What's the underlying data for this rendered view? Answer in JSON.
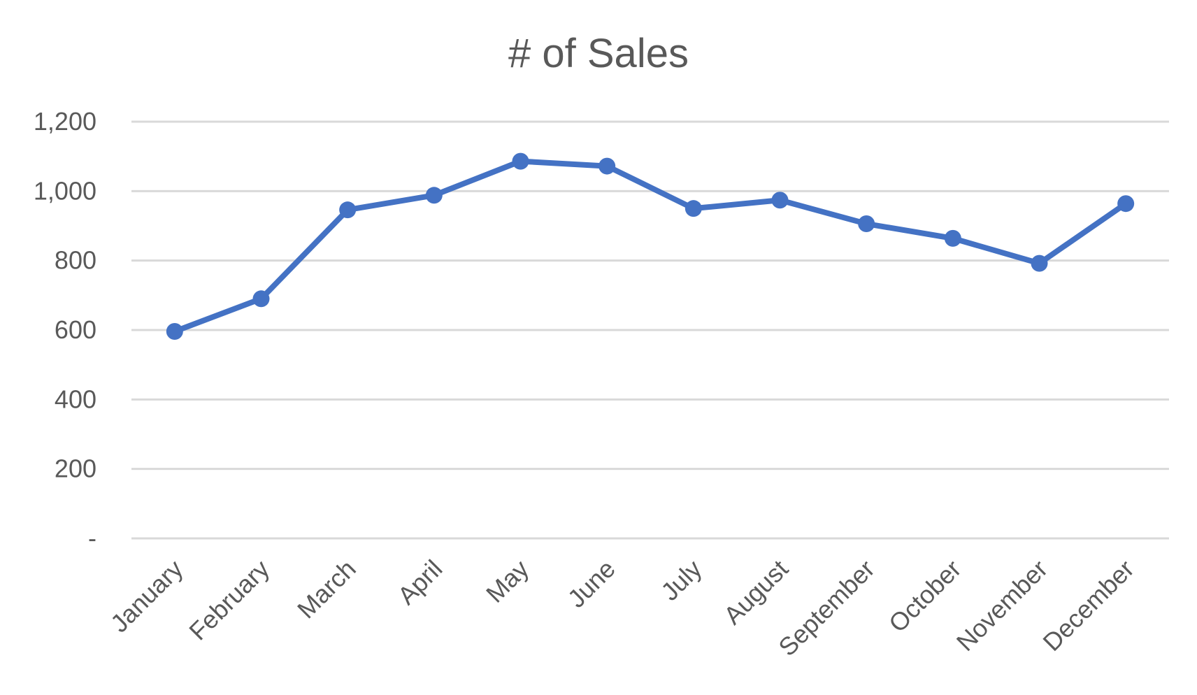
{
  "chart_data": {
    "type": "line",
    "title": "# of Sales",
    "xlabel": "",
    "ylabel": "",
    "categories": [
      "January",
      "February",
      "March",
      "April",
      "May",
      "June",
      "July",
      "August",
      "September",
      "October",
      "November",
      "December"
    ],
    "series": [
      {
        "values": [
          596,
          690,
          946,
          988,
          1086,
          1072,
          950,
          974,
          906,
          864,
          792,
          964
        ],
        "color": "#4472C4"
      }
    ],
    "ylim": [
      0,
      1200
    ],
    "y_ticks": [
      0,
      200,
      400,
      600,
      800,
      1000,
      1200
    ],
    "y_tick_labels": [
      "-",
      "200",
      "400",
      "600",
      "800",
      "1,000",
      "1,200"
    ],
    "grid": true,
    "grid_color": "#D9D9D9",
    "text_color": "#595959",
    "legend": "none",
    "markers": true
  }
}
